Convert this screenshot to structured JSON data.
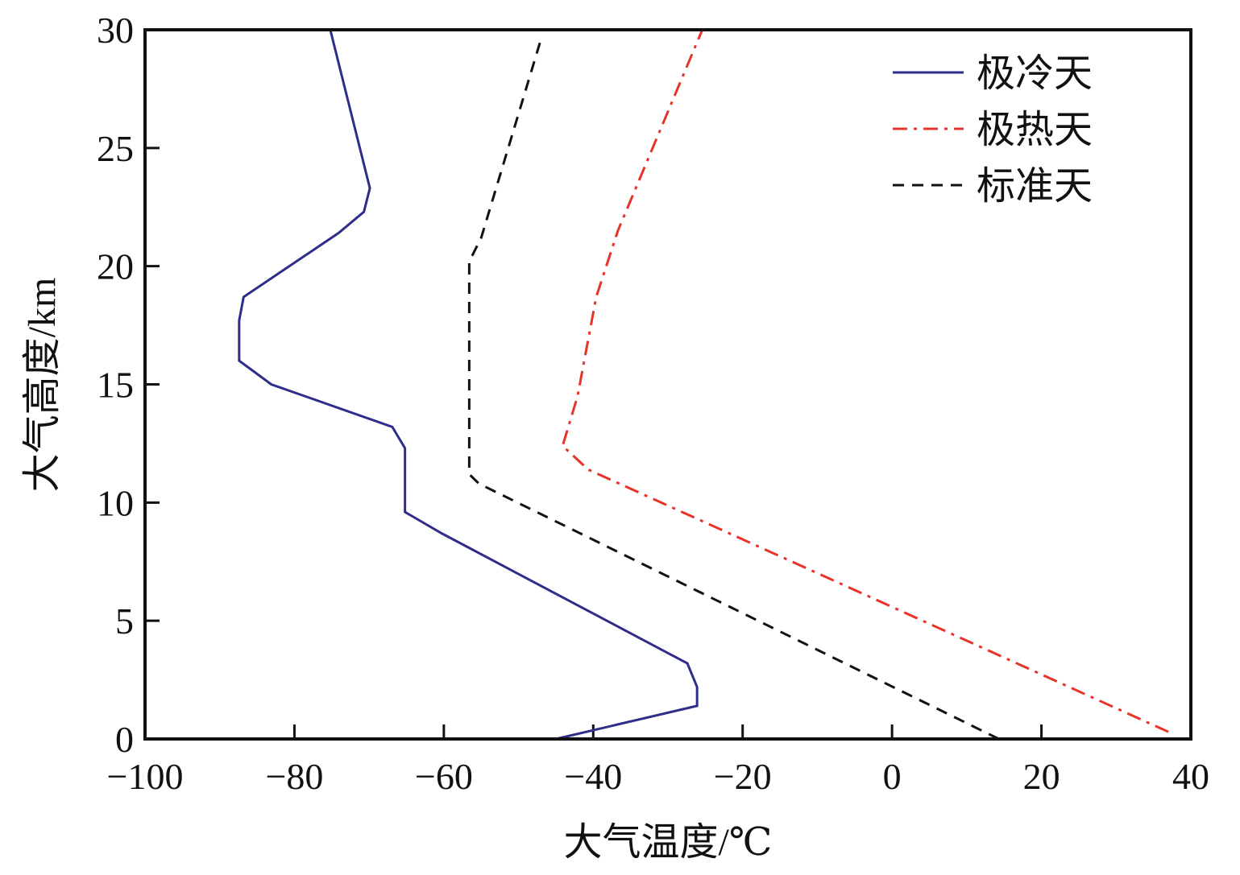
{
  "chart_data": {
    "type": "line",
    "title": "",
    "xlabel": "大气温度/℃",
    "ylabel": "大气高度/km",
    "xlim": [
      -100,
      40
    ],
    "ylim": [
      0,
      30
    ],
    "xticks": [
      -100,
      -80,
      -60,
      -40,
      -20,
      0,
      20,
      40
    ],
    "xtick_labels": [
      "−100",
      "−80",
      "−60",
      "−40",
      "−20",
      "0",
      "20",
      "40"
    ],
    "yticks": [
      0,
      5,
      10,
      15,
      20,
      25,
      30
    ],
    "ytick_labels": [
      "0",
      "5",
      "10",
      "15",
      "20",
      "25",
      "30"
    ],
    "grid": false,
    "legend_position": "top-right",
    "series": [
      {
        "name": "极冷天",
        "color": "#2e2e8a",
        "style": "solid",
        "points": [
          [
            -45.0,
            0
          ],
          [
            -26.1,
            1.4
          ],
          [
            -26.1,
            2.2
          ],
          [
            -27.4,
            3.2
          ],
          [
            -60.3,
            8.7
          ],
          [
            -65.2,
            9.6
          ],
          [
            -65.2,
            12.3
          ],
          [
            -66.9,
            13.2
          ],
          [
            -83.1,
            15.0
          ],
          [
            -87.4,
            16.0
          ],
          [
            -87.4,
            17.7
          ],
          [
            -86.8,
            18.7
          ],
          [
            -74.1,
            21.4
          ],
          [
            -70.7,
            22.3
          ],
          [
            -69.9,
            23.3
          ],
          [
            -75.2,
            30
          ]
        ]
      },
      {
        "name": "极热天",
        "color": "#e8332a",
        "style": "dashdot",
        "points": [
          [
            37.0,
            0.3
          ],
          [
            -40.7,
            11.4
          ],
          [
            -44.1,
            12.4
          ],
          [
            -42.1,
            14.5
          ],
          [
            -39.6,
            18.7
          ],
          [
            -36.7,
            21.5
          ],
          [
            -25.4,
            30
          ]
        ]
      },
      {
        "name": "标准天",
        "color": "#111111",
        "style": "dashed",
        "points": [
          [
            14.3,
            0
          ],
          [
            -55.3,
            10.8
          ],
          [
            -56.6,
            11.2
          ],
          [
            -56.6,
            20.2
          ],
          [
            -55.0,
            21.2
          ],
          [
            -46.9,
            29.7
          ]
        ]
      }
    ]
  }
}
